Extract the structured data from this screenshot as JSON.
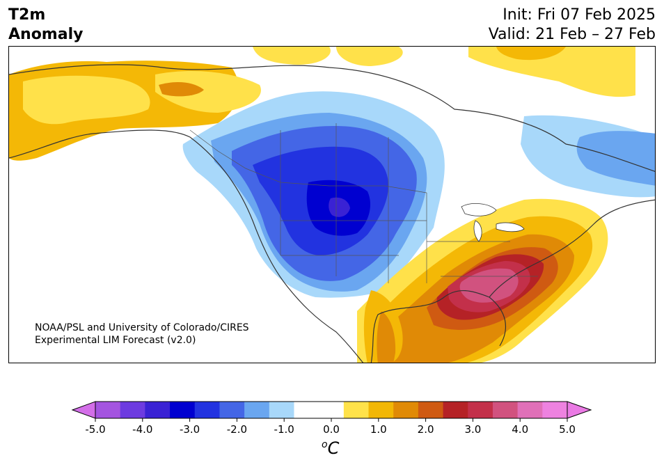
{
  "title": {
    "left_lines": [
      "T2m",
      "Anomaly"
    ],
    "init": "Init: Fri 07 Feb 2025",
    "valid": "Valid: 21 Feb – 27 Feb"
  },
  "credit": {
    "line1": "NOAA/PSL and University of Colorado/CIRES",
    "line2": "Experimental LIM Forecast (v2.0)"
  },
  "colorbar": {
    "levels": [
      -5.0,
      -4.5,
      -4.0,
      -3.5,
      -3.0,
      -2.5,
      -2.0,
      -1.5,
      -1.0,
      -0.5,
      0.5,
      1.0,
      1.5,
      2.0,
      2.5,
      3.0,
      3.5,
      4.0,
      4.5,
      5.0
    ],
    "colors": [
      "#a454e0",
      "#6d3be0",
      "#3a22d4",
      "#0000d0",
      "#2233e0",
      "#4466e6",
      "#6aa6f0",
      "#a8d8fa",
      "#ffffff",
      "#ffffff",
      "#ffe24a",
      "#f2b705",
      "#e08a06",
      "#cf5a12",
      "#b52226",
      "#c3304a",
      "#d1527f",
      "#e070b8",
      "#ee82e0"
    ],
    "under_color": "#d36ee8",
    "over_color": "#ea7ae4",
    "tick_labels": [
      "-5.0",
      "-4.0",
      "-3.0",
      "-2.0",
      "-1.0",
      "0.0",
      "1.0",
      "2.0",
      "3.0",
      "4.0",
      "5.0"
    ],
    "unit_base": "C",
    "unit_sup": "o"
  }
}
